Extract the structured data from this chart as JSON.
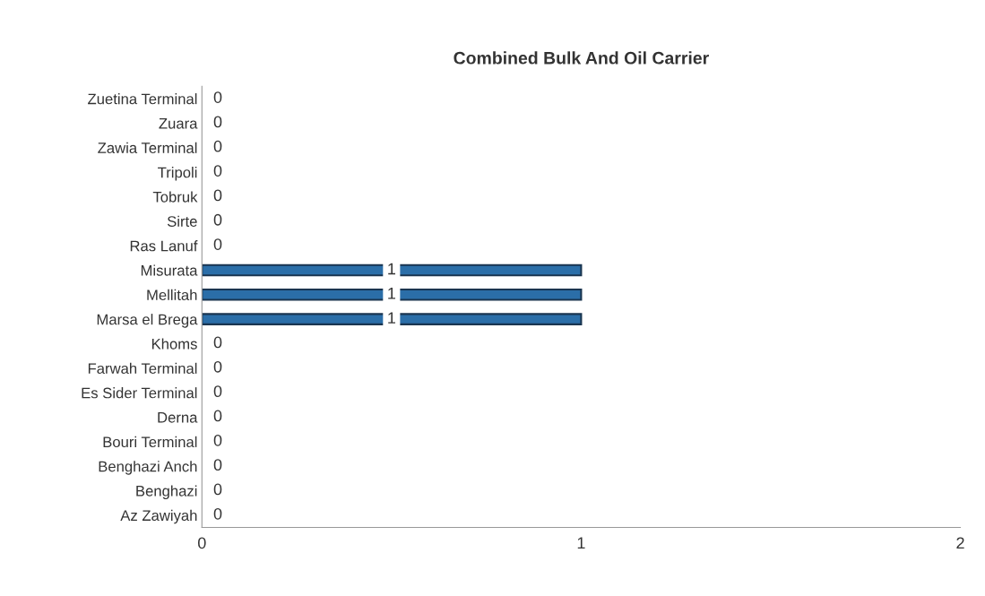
{
  "chart_data": {
    "type": "bar",
    "orientation": "horizontal",
    "title": "Combined Bulk And Oil Carrier",
    "categories": [
      "Zuetina Terminal",
      "Zuara",
      "Zawia Terminal",
      "Tripoli",
      "Tobruk",
      "Sirte",
      "Ras Lanuf",
      "Misurata",
      "Mellitah",
      "Marsa el Brega",
      "Khoms",
      "Farwah Terminal",
      "Es Sider Terminal",
      "Derna",
      "Bouri Terminal",
      "Benghazi Anch",
      "Benghazi",
      "Az Zawiyah"
    ],
    "values": [
      0,
      0,
      0,
      0,
      0,
      0,
      0,
      1,
      1,
      1,
      0,
      0,
      0,
      0,
      0,
      0,
      0,
      0
    ],
    "color": "#2b6ea8",
    "xlim": [
      0,
      2
    ],
    "xticks": [
      0,
      1,
      2
    ],
    "grid": false,
    "data_labels": true
  }
}
